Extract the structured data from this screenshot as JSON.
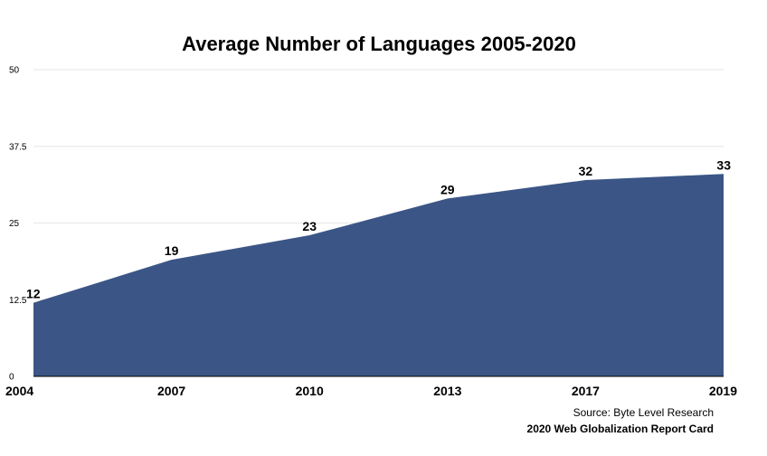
{
  "chart_data": {
    "type": "area",
    "title": "Average Number of Languages 2005-2020",
    "categories": [
      "2004",
      "2007",
      "2010",
      "2013",
      "2017",
      "2019"
    ],
    "values": [
      12,
      19,
      23,
      29,
      32,
      33
    ],
    "data_labels": [
      "12",
      "19",
      "23",
      "29",
      "32",
      "33"
    ],
    "yticks": [
      "0",
      "12.5",
      "25",
      "37.5",
      "50"
    ],
    "ylim": [
      0,
      50
    ],
    "grid": true,
    "legend": "none",
    "fill_color": "#3b5686"
  },
  "footer": {
    "source": "Source: Byte Level Research",
    "credit": "2020 Web Globalization Report Card"
  }
}
